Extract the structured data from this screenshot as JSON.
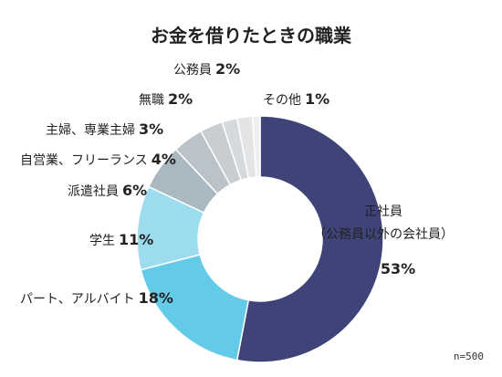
{
  "chart_data": {
    "type": "pie",
    "title": "お金を借りたときの職業",
    "note": "n=500",
    "slices": [
      {
        "name_lines": [
          "正社員",
          "（公務員以外の会社員）"
        ],
        "value": 53,
        "pct_label": "53%",
        "color": "#3f4478"
      },
      {
        "name_lines": [
          "パート、アルバイト"
        ],
        "value": 18,
        "pct_label": "18%",
        "color": "#63cbe8"
      },
      {
        "name_lines": [
          "学生"
        ],
        "value": 11,
        "pct_label": "11%",
        "color": "#9ddcef"
      },
      {
        "name_lines": [
          "派遣社員"
        ],
        "value": 6,
        "pct_label": "6%",
        "color": "#aab8c2"
      },
      {
        "name_lines": [
          "自営業、フリーランス"
        ],
        "value": 4,
        "pct_label": "4%",
        "color": "#bcc3c8"
      },
      {
        "name_lines": [
          "主婦、専業主婦"
        ],
        "value": 3,
        "pct_label": "3%",
        "color": "#c8cdd1"
      },
      {
        "name_lines": [
          "無職"
        ],
        "value": 2,
        "pct_label": "2%",
        "color": "#d6d9dc"
      },
      {
        "name_lines": [
          "公務員"
        ],
        "value": 2,
        "pct_label": "2%",
        "color": "#e2e4e6"
      },
      {
        "name_lines": [
          "その他"
        ],
        "value": 1,
        "pct_label": "1%",
        "color": "#eeeff0"
      }
    ]
  }
}
